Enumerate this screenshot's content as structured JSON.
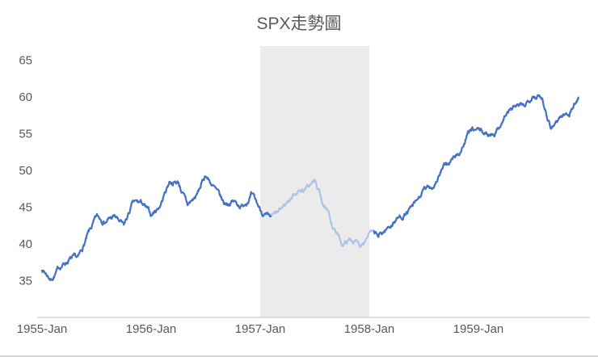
{
  "chart_data": {
    "type": "line",
    "title": "SPX走勢圖",
    "xlabel": "",
    "ylabel": "",
    "grid": false,
    "legend": "none",
    "ylim": [
      30,
      66.9
    ],
    "yticks": [
      35,
      40,
      45,
      50,
      55,
      60,
      65
    ],
    "xtick_labels": [
      "1955-Jan",
      "1956-Jan",
      "1957-Jan",
      "1958-Jan",
      "1959-Jan"
    ],
    "x": [
      "1955-01",
      "1955-02",
      "1955-03",
      "1955-04",
      "1955-05",
      "1955-06",
      "1955-07",
      "1955-08",
      "1955-09",
      "1955-10",
      "1955-11",
      "1955-12",
      "1956-01",
      "1956-02",
      "1956-03",
      "1956-04",
      "1956-05",
      "1956-06",
      "1956-07",
      "1956-08",
      "1956-09",
      "1956-10",
      "1956-11",
      "1956-12",
      "1957-01",
      "1957-02",
      "1957-03",
      "1957-04",
      "1957-05",
      "1957-06",
      "1957-07",
      "1957-08",
      "1957-09",
      "1957-10",
      "1957-11",
      "1957-12",
      "1958-01",
      "1958-02",
      "1958-03",
      "1958-04",
      "1958-05",
      "1958-06",
      "1958-07",
      "1958-08",
      "1958-09",
      "1958-10",
      "1958-11",
      "1958-12",
      "1959-01",
      "1959-02",
      "1959-03",
      "1959-04",
      "1959-05",
      "1959-06",
      "1959-07",
      "1959-08",
      "1959-09",
      "1959-10",
      "1959-11",
      "1959-12"
    ],
    "values": [
      36.6,
      35.2,
      36.9,
      37.9,
      37.9,
      41.0,
      43.5,
      43.2,
      43.7,
      42.3,
      45.5,
      45.5,
      43.8,
      45.3,
      48.5,
      48.4,
      45.2,
      46.5,
      49.4,
      47.5,
      45.4,
      45.8,
      45.1,
      46.7,
      44.6,
      43.3,
      44.1,
      45.7,
      47.2,
      47.5,
      48.5,
      45.3,
      42.4,
      40.0,
      40.6,
      39.9,
      41.7,
      40.9,
      42.1,
      43.4,
      44.1,
      45.2,
      47.2,
      47.8,
      50.1,
      51.3,
      52.5,
      55.2,
      55.4,
      54.8,
      55.4,
      57.6,
      58.7,
      58.5,
      60.5,
      59.8,
      56.0,
      57.3,
      57.8,
      59.9
    ],
    "series_color": "#4472C4",
    "highlight_segment": {
      "start_month_index": 25.2,
      "end_month_index": 36.5,
      "color": "#AFC5E8"
    },
    "shaded_band": {
      "start": "1957-01",
      "end": "1958-01",
      "color": "#EBEBEB"
    },
    "axis_color": "#BFBFBF",
    "label_color": "#595959",
    "noise_seed": 7,
    "noise_amplitude": 0.5
  }
}
